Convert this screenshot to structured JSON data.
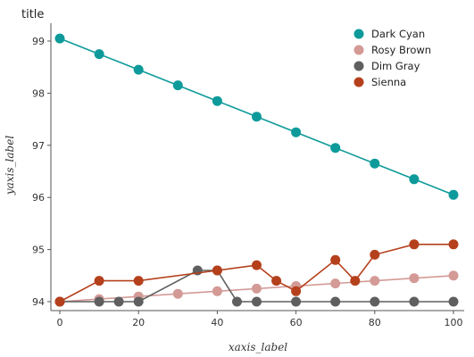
{
  "chart_data": {
    "type": "line",
    "title": "title",
    "xlabel": "xaxis_label",
    "ylabel": "yaxis_label",
    "xlim": [
      0,
      100
    ],
    "ylim": [
      94,
      99
    ],
    "xticks": [
      "0",
      "20",
      "40",
      "60",
      "80",
      "100"
    ],
    "yticks": [
      "94",
      "95",
      "96",
      "97",
      "98",
      "99"
    ],
    "grid": false,
    "legend_position": "right",
    "series": [
      {
        "name": "Dark Cyan",
        "color": "#0e9a9a",
        "x": [
          0,
          10,
          20,
          30,
          40,
          50,
          60,
          70,
          80,
          90,
          100
        ],
        "y": [
          99.05,
          98.75,
          98.45,
          98.15,
          97.85,
          97.55,
          97.25,
          96.95,
          96.65,
          96.35,
          96.05
        ]
      },
      {
        "name": "Rosy Brown",
        "color": "#d39a96",
        "x": [
          0,
          10,
          20,
          30,
          40,
          50,
          60,
          70,
          80,
          90,
          100
        ],
        "y": [
          94.0,
          94.05,
          94.1,
          94.15,
          94.2,
          94.25,
          94.3,
          94.35,
          94.4,
          94.45,
          94.5
        ]
      },
      {
        "name": "Dim Gray",
        "color": "#5f5f5f",
        "x": [
          0,
          10,
          15,
          20,
          35,
          40,
          45,
          50,
          60,
          70,
          80,
          90,
          100
        ],
        "y": [
          94.0,
          94.0,
          94.0,
          94.0,
          94.6,
          94.6,
          94.0,
          94.0,
          94.0,
          94.0,
          94.0,
          94.0,
          94.0
        ]
      },
      {
        "name": "Sienna",
        "color": "#b5401c",
        "x": [
          0,
          10,
          20,
          40,
          50,
          55,
          60,
          70,
          75,
          80,
          90,
          100
        ],
        "y": [
          94.0,
          94.4,
          94.4,
          94.6,
          94.7,
          94.4,
          94.2,
          94.8,
          94.4,
          94.9,
          95.1,
          95.1
        ]
      }
    ]
  }
}
